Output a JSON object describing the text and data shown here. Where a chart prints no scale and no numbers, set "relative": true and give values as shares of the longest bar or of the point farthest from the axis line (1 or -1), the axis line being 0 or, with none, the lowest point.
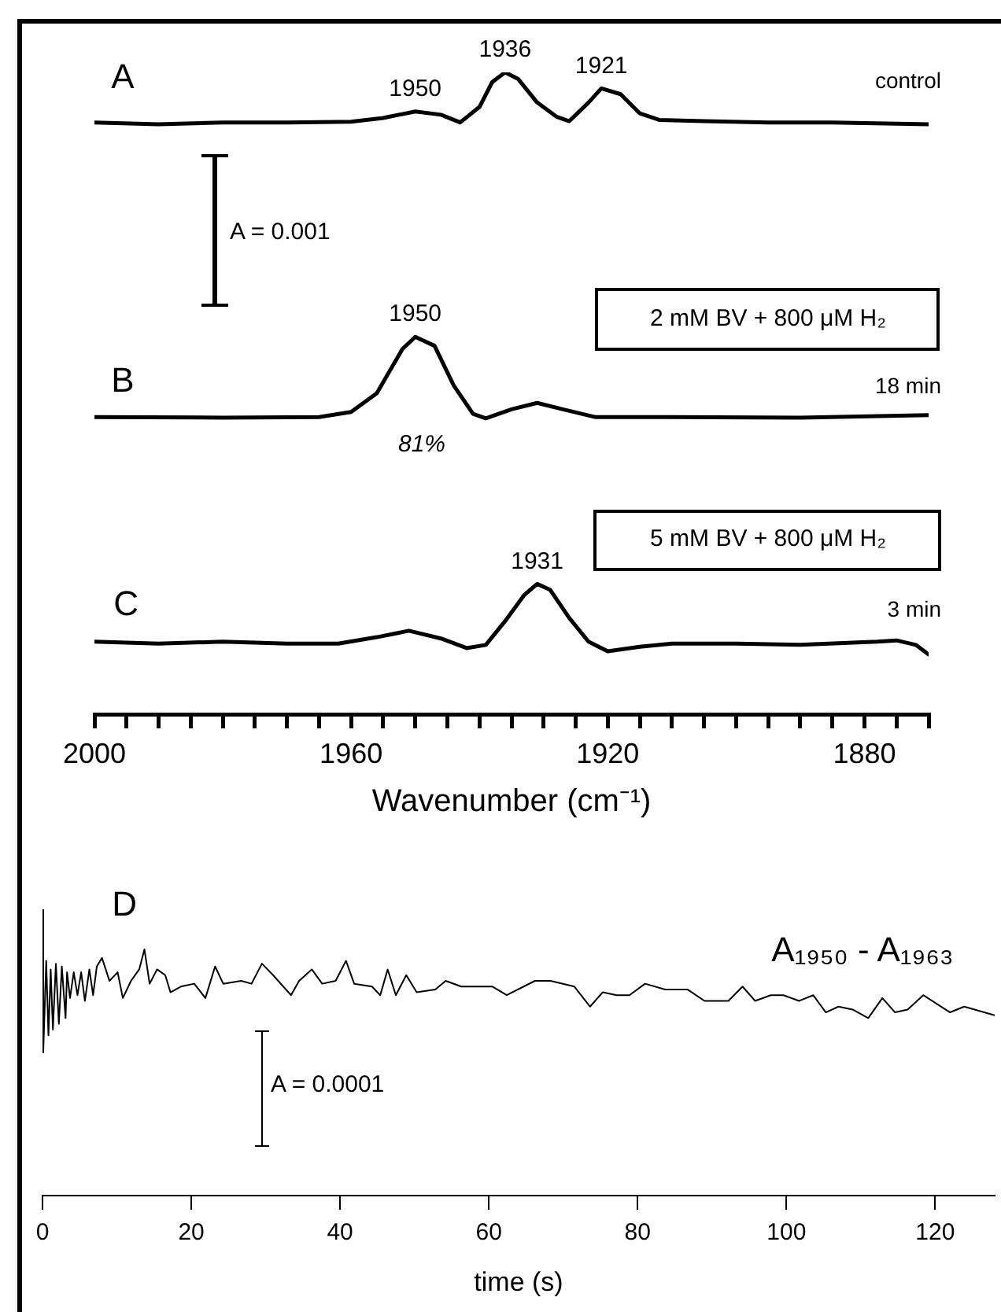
{
  "chart_data": [
    {
      "type": "line",
      "relative": true,
      "marker": "none",
      "tick_labels": "x",
      "xlim": [
        2000,
        1870
      ],
      "xlabel": "Wavenumber (cm⁻¹)",
      "xticks": [
        2000,
        {
          "value": 1995,
          "label": null
        },
        {
          "value": 1990,
          "label": null
        },
        {
          "value": 1985,
          "label": null
        },
        {
          "value": 1980,
          "label": null
        },
        {
          "value": 1975,
          "label": null
        },
        {
          "value": 1970,
          "label": null
        },
        {
          "value": 1965,
          "label": null
        },
        1960,
        {
          "value": 1955,
          "label": null
        },
        {
          "value": 1950,
          "label": null
        },
        {
          "value": 1945,
          "label": null
        },
        {
          "value": 1940,
          "label": null
        },
        {
          "value": 1935,
          "label": null
        },
        {
          "value": 1930,
          "label": null
        },
        {
          "value": 1925,
          "label": null
        },
        1920,
        {
          "value": 1915,
          "label": null
        },
        {
          "value": 1910,
          "label": null
        },
        {
          "value": 1905,
          "label": null
        },
        {
          "value": 1900,
          "label": null
        },
        {
          "value": 1895,
          "label": null
        },
        {
          "value": 1890,
          "label": null
        },
        {
          "value": 1885,
          "label": null
        },
        1880,
        {
          "value": 1875,
          "label": null
        },
        {
          "value": 1870,
          "label": null
        }
      ],
      "series": [
        {
          "name": "A",
          "color": "#000000",
          "x": [
            2000,
            1990,
            1980,
            1970,
            1960,
            1955,
            1950,
            1946,
            1943,
            1940,
            1938,
            1936,
            1934,
            1931,
            1928,
            1926,
            1923,
            1921,
            1918,
            1915,
            1912,
            1905,
            1895,
            1885,
            1870
          ],
          "values": [
            0.922,
            0.919,
            0.922,
            0.922,
            0.923,
            0.929,
            0.939,
            0.934,
            0.922,
            0.946,
            0.985,
            1,
            0.99,
            0.953,
            0.931,
            0.924,
            0.953,
            0.975,
            0.966,
            0.936,
            0.926,
            0.924,
            0.922,
            0.922,
            0.919
          ]
        },
        {
          "name": "B",
          "color": "#000000",
          "x": [
            2000,
            1980,
            1965,
            1960,
            1956,
            1952,
            1950,
            1947,
            1944,
            1941,
            1939,
            1935,
            1931,
            1927,
            1922,
            1910,
            1890,
            1870
          ],
          "values": [
            0.463,
            0.462,
            0.463,
            0.471,
            0.5,
            0.569,
            0.588,
            0.574,
            0.512,
            0.468,
            0.461,
            0.475,
            0.485,
            0.475,
            0.463,
            0.463,
            0.462,
            0.466
          ]
        },
        {
          "name": "C",
          "color": "#000000",
          "x": [
            2000,
            1990,
            1980,
            1970,
            1962,
            1956,
            1951,
            1946,
            1942,
            1939,
            1936,
            1933,
            1931,
            1929,
            1926,
            1923,
            1920,
            1915,
            1910,
            1900,
            1890,
            1878,
            1875,
            1872,
            1870
          ],
          "values": [
            0.113,
            0.11,
            0.113,
            0.11,
            0.11,
            0.12,
            0.13,
            0.118,
            0.103,
            0.108,
            0.145,
            0.186,
            0.203,
            0.194,
            0.15,
            0.113,
            0.098,
            0.105,
            0.11,
            0.11,
            0.108,
            0.113,
            0.115,
            0.108,
            0.093
          ]
        }
      ],
      "annotations": [
        {
          "text": "1950",
          "x": 1950,
          "y": 0.939
        },
        {
          "text": "1936",
          "x": 1936,
          "y": 1
        },
        {
          "text": "1921",
          "x": 1921,
          "y": 0.975
        },
        "control",
        "A = 0.001",
        {
          "text": "1950",
          "x": 1950,
          "y": 0.588
        },
        "81%",
        "2 mM BV + 800 μM H₂",
        "18 min",
        {
          "text": "1931",
          "x": 1931,
          "y": 0.203
        },
        "5 mM BV + 800 μM H₂",
        "3 min"
      ]
    },
    {
      "type": "line",
      "relative": true,
      "marker": "none",
      "tick_labels": "x",
      "xlim": [
        0,
        128
      ],
      "xticks": [
        0,
        20,
        40,
        60,
        80,
        100,
        120
      ],
      "xlabel": "time (s)",
      "x": [
        0,
        0.1,
        0.5,
        0.8,
        1.1,
        1.4,
        1.8,
        2.2,
        2.6,
        3.1,
        3.3,
        3.7,
        4.2,
        4.7,
        5.2,
        5.7,
        6.3,
        6.8,
        7.3,
        8,
        9,
        10.1,
        10.8,
        11.9,
        13,
        13.7,
        14.4,
        15.4,
        16.5,
        17.2,
        18.6,
        20.4,
        21.9,
        23.2,
        24.3,
        26.7,
        28.1,
        29.5,
        31,
        33.4,
        34.5,
        36.2,
        37.6,
        39.4,
        40.8,
        41.9,
        44.3,
        45.4,
        46.4,
        47.5,
        48.9,
        50.3,
        52.8,
        54.2,
        56.3,
        57.7,
        60.5,
        62.4,
        66.2,
        68.3,
        71.5,
        73.6,
        75.3,
        77.2,
        78.9,
        81,
        83.7,
        86.7,
        89,
        92.2,
        94.1,
        95.8,
        97.9,
        99.6,
        101.7,
        103.6,
        105.3,
        107,
        108.9,
        111,
        112.9,
        114.6,
        116.3,
        118.4,
        122,
        123.9,
        128
      ],
      "series": [
        {
          "name": "D",
          "color": "#000000",
          "values": [
            1,
            0.5,
            0.82,
            0.56,
            0.79,
            0.58,
            0.81,
            0.6,
            0.8,
            0.62,
            0.78,
            0.69,
            0.78,
            0.7,
            0.78,
            0.68,
            0.79,
            0.7,
            0.8,
            0.83,
            0.75,
            0.78,
            0.69,
            0.75,
            0.79,
            0.86,
            0.74,
            0.79,
            0.77,
            0.71,
            0.73,
            0.74,
            0.69,
            0.8,
            0.74,
            0.75,
            0.74,
            0.81,
            0.77,
            0.7,
            0.75,
            0.79,
            0.74,
            0.75,
            0.82,
            0.74,
            0.73,
            0.7,
            0.79,
            0.7,
            0.77,
            0.71,
            0.72,
            0.75,
            0.73,
            0.73,
            0.73,
            0.7,
            0.75,
            0.75,
            0.73,
            0.66,
            0.71,
            0.7,
            0.7,
            0.74,
            0.72,
            0.72,
            0.68,
            0.68,
            0.73,
            0.68,
            0.7,
            0.7,
            0.68,
            0.7,
            0.64,
            0.66,
            0.65,
            0.62,
            0.69,
            0.64,
            0.65,
            0.7,
            0.64,
            0.66,
            0.63
          ]
        }
      ],
      "annotations": [
        "A₁₉₅₀ - A₁₉₆₃",
        "A = 0.0001"
      ]
    }
  ]
}
